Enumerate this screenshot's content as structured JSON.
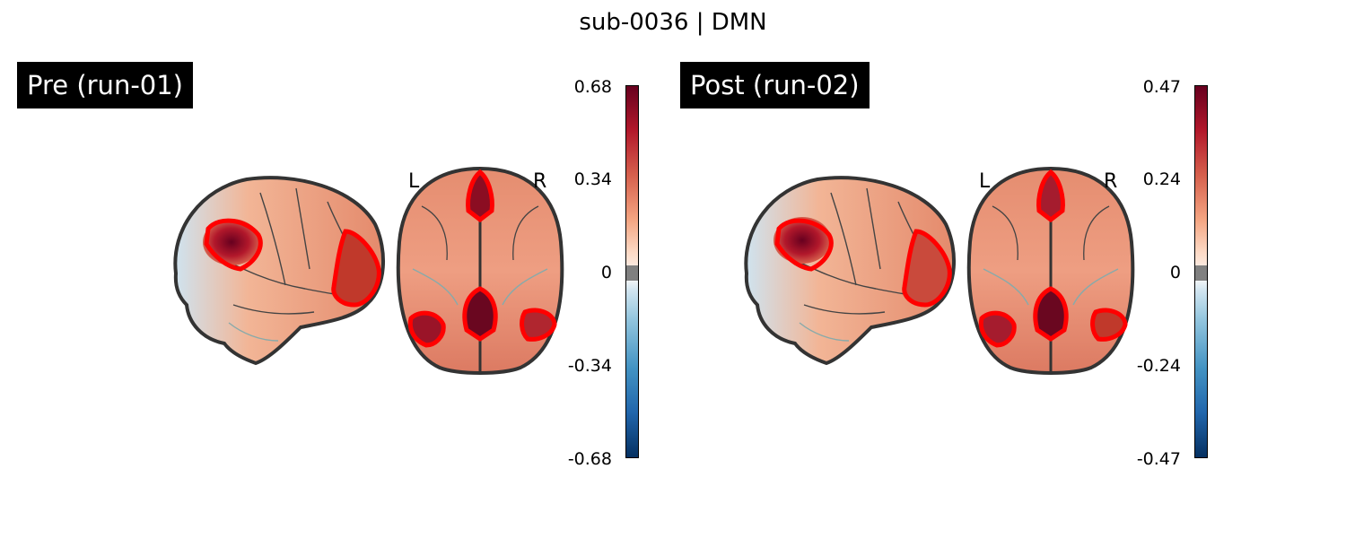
{
  "title": "sub-0036 | DMN",
  "panels": [
    {
      "label": "Pre (run-01)",
      "colorbar": {
        "max": "0.68",
        "half": "0.34",
        "zero": "0",
        "neg_half": "-0.34",
        "min": "-0.68"
      },
      "orientation": {
        "left": "L",
        "right": "R"
      }
    },
    {
      "label": "Post (run-02)",
      "colorbar": {
        "max": "0.47",
        "half": "0.24",
        "zero": "0",
        "neg_half": "-0.24",
        "min": "-0.47"
      },
      "orientation": {
        "left": "L",
        "right": "R"
      }
    }
  ],
  "colors": {
    "roi_outline": "#ff0000",
    "brain_outline": "#333333",
    "colormap": "RdBu_r",
    "threshold_band": "#808080"
  }
}
